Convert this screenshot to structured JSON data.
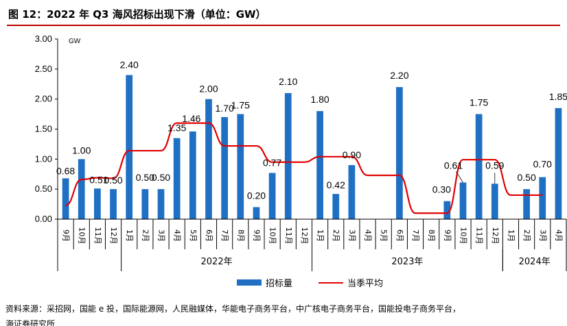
{
  "figure": {
    "title": "图 12：2022 年 Q3 海风招标出现下滑（单位：GW）"
  },
  "chart_data": {
    "type": "bar",
    "unit": "GW",
    "ylim": [
      0,
      3.0
    ],
    "yticks": [
      "0.00",
      "0.50",
      "1.00",
      "1.50",
      "2.00",
      "2.50",
      "3.00"
    ],
    "categories": [
      "9月",
      "10月",
      "11月",
      "12月",
      "1月",
      "2月",
      "3月",
      "4月",
      "5月",
      "6月",
      "7月",
      "8月",
      "9月",
      "10月",
      "11月",
      "12月",
      "1月",
      "2月",
      "3月",
      "4月",
      "5月",
      "6月",
      "7月",
      "8月",
      "9月",
      "10月",
      "11月",
      "12月",
      "1月",
      "2月",
      "3月",
      "4月"
    ],
    "year_groups": [
      {
        "label": "2022年",
        "start": 4,
        "end": 15
      },
      {
        "label": "2023年",
        "start": 16,
        "end": 27
      },
      {
        "label": "2024年",
        "start": 28,
        "end": 31
      }
    ],
    "series": [
      {
        "name": "招标量",
        "kind": "bar",
        "color": "#1f6fc3",
        "values": [
          0.68,
          1.0,
          0.51,
          0.5,
          2.4,
          0.5,
          0.5,
          1.35,
          1.46,
          2.0,
          1.7,
          1.75,
          0.2,
          0.77,
          2.1,
          null,
          1.8,
          0.42,
          0.9,
          null,
          null,
          2.2,
          null,
          null,
          0.3,
          0.61,
          1.75,
          0.59,
          null,
          0.5,
          0.7,
          1.85
        ],
        "labels": [
          "0.68",
          "1.00",
          "0.51",
          "0.50",
          "2.40",
          "0.50",
          "0.50",
          "1.35",
          "1.46",
          "2.00",
          "1.70",
          "1.75",
          "0.20",
          "0.77",
          "2.10",
          "",
          "1.80",
          "0.42",
          "0.90",
          "",
          "",
          "2.20",
          "",
          "",
          "0.30",
          "0.61",
          "1.75",
          "0.59",
          "",
          "0.50",
          "0.70",
          "1.85"
        ]
      },
      {
        "name": "当季平均",
        "kind": "line",
        "color": "#e00000",
        "values": [
          0.23,
          0.66,
          0.69,
          0.68,
          1.14,
          1.14,
          1.14,
          1.6,
          1.6,
          1.6,
          1.22,
          1.22,
          1.22,
          0.95,
          0.95,
          0.95,
          1.04,
          1.04,
          1.04,
          0.73,
          0.73,
          0.73,
          0.1,
          0.1,
          0.1,
          0.99,
          0.99,
          0.99,
          0.4,
          0.4,
          0.4,
          null
        ]
      }
    ],
    "xlabel": "",
    "ylabel": "GW",
    "legend_position": "bottom-center"
  },
  "legend": {
    "bar_label": "招标量",
    "line_label": "当季平均"
  },
  "source": {
    "text": "资料来源：采招网，国能 e 投，国际能源网，人民融媒体，华能电子商务平台，中广核电子商务平台，国能投电子商务平台，",
    "text2": "海证券研究所"
  }
}
